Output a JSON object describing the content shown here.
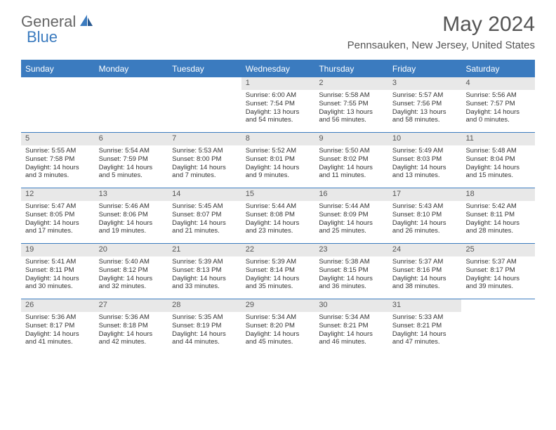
{
  "brand": {
    "part1": "General",
    "part2": "Blue",
    "logo_color": "#3b7bbf"
  },
  "title": "May 2024",
  "location": "Pennsauken, New Jersey, United States",
  "colors": {
    "header_bg": "#3b7bbf",
    "header_text": "#ffffff",
    "daynum_bg": "#e8e8e8",
    "border": "#3b7bbf",
    "text": "#333333"
  },
  "weekdays": [
    "Sunday",
    "Monday",
    "Tuesday",
    "Wednesday",
    "Thursday",
    "Friday",
    "Saturday"
  ],
  "weeks": [
    [
      {
        "n": "",
        "lines": []
      },
      {
        "n": "",
        "lines": []
      },
      {
        "n": "",
        "lines": []
      },
      {
        "n": "1",
        "lines": [
          "Sunrise: 6:00 AM",
          "Sunset: 7:54 PM",
          "Daylight: 13 hours and 54 minutes."
        ]
      },
      {
        "n": "2",
        "lines": [
          "Sunrise: 5:58 AM",
          "Sunset: 7:55 PM",
          "Daylight: 13 hours and 56 minutes."
        ]
      },
      {
        "n": "3",
        "lines": [
          "Sunrise: 5:57 AM",
          "Sunset: 7:56 PM",
          "Daylight: 13 hours and 58 minutes."
        ]
      },
      {
        "n": "4",
        "lines": [
          "Sunrise: 5:56 AM",
          "Sunset: 7:57 PM",
          "Daylight: 14 hours and 0 minutes."
        ]
      }
    ],
    [
      {
        "n": "5",
        "lines": [
          "Sunrise: 5:55 AM",
          "Sunset: 7:58 PM",
          "Daylight: 14 hours and 3 minutes."
        ]
      },
      {
        "n": "6",
        "lines": [
          "Sunrise: 5:54 AM",
          "Sunset: 7:59 PM",
          "Daylight: 14 hours and 5 minutes."
        ]
      },
      {
        "n": "7",
        "lines": [
          "Sunrise: 5:53 AM",
          "Sunset: 8:00 PM",
          "Daylight: 14 hours and 7 minutes."
        ]
      },
      {
        "n": "8",
        "lines": [
          "Sunrise: 5:52 AM",
          "Sunset: 8:01 PM",
          "Daylight: 14 hours and 9 minutes."
        ]
      },
      {
        "n": "9",
        "lines": [
          "Sunrise: 5:50 AM",
          "Sunset: 8:02 PM",
          "Daylight: 14 hours and 11 minutes."
        ]
      },
      {
        "n": "10",
        "lines": [
          "Sunrise: 5:49 AM",
          "Sunset: 8:03 PM",
          "Daylight: 14 hours and 13 minutes."
        ]
      },
      {
        "n": "11",
        "lines": [
          "Sunrise: 5:48 AM",
          "Sunset: 8:04 PM",
          "Daylight: 14 hours and 15 minutes."
        ]
      }
    ],
    [
      {
        "n": "12",
        "lines": [
          "Sunrise: 5:47 AM",
          "Sunset: 8:05 PM",
          "Daylight: 14 hours and 17 minutes."
        ]
      },
      {
        "n": "13",
        "lines": [
          "Sunrise: 5:46 AM",
          "Sunset: 8:06 PM",
          "Daylight: 14 hours and 19 minutes."
        ]
      },
      {
        "n": "14",
        "lines": [
          "Sunrise: 5:45 AM",
          "Sunset: 8:07 PM",
          "Daylight: 14 hours and 21 minutes."
        ]
      },
      {
        "n": "15",
        "lines": [
          "Sunrise: 5:44 AM",
          "Sunset: 8:08 PM",
          "Daylight: 14 hours and 23 minutes."
        ]
      },
      {
        "n": "16",
        "lines": [
          "Sunrise: 5:44 AM",
          "Sunset: 8:09 PM",
          "Daylight: 14 hours and 25 minutes."
        ]
      },
      {
        "n": "17",
        "lines": [
          "Sunrise: 5:43 AM",
          "Sunset: 8:10 PM",
          "Daylight: 14 hours and 26 minutes."
        ]
      },
      {
        "n": "18",
        "lines": [
          "Sunrise: 5:42 AM",
          "Sunset: 8:11 PM",
          "Daylight: 14 hours and 28 minutes."
        ]
      }
    ],
    [
      {
        "n": "19",
        "lines": [
          "Sunrise: 5:41 AM",
          "Sunset: 8:11 PM",
          "Daylight: 14 hours and 30 minutes."
        ]
      },
      {
        "n": "20",
        "lines": [
          "Sunrise: 5:40 AM",
          "Sunset: 8:12 PM",
          "Daylight: 14 hours and 32 minutes."
        ]
      },
      {
        "n": "21",
        "lines": [
          "Sunrise: 5:39 AM",
          "Sunset: 8:13 PM",
          "Daylight: 14 hours and 33 minutes."
        ]
      },
      {
        "n": "22",
        "lines": [
          "Sunrise: 5:39 AM",
          "Sunset: 8:14 PM",
          "Daylight: 14 hours and 35 minutes."
        ]
      },
      {
        "n": "23",
        "lines": [
          "Sunrise: 5:38 AM",
          "Sunset: 8:15 PM",
          "Daylight: 14 hours and 36 minutes."
        ]
      },
      {
        "n": "24",
        "lines": [
          "Sunrise: 5:37 AM",
          "Sunset: 8:16 PM",
          "Daylight: 14 hours and 38 minutes."
        ]
      },
      {
        "n": "25",
        "lines": [
          "Sunrise: 5:37 AM",
          "Sunset: 8:17 PM",
          "Daylight: 14 hours and 39 minutes."
        ]
      }
    ],
    [
      {
        "n": "26",
        "lines": [
          "Sunrise: 5:36 AM",
          "Sunset: 8:17 PM",
          "Daylight: 14 hours and 41 minutes."
        ]
      },
      {
        "n": "27",
        "lines": [
          "Sunrise: 5:36 AM",
          "Sunset: 8:18 PM",
          "Daylight: 14 hours and 42 minutes."
        ]
      },
      {
        "n": "28",
        "lines": [
          "Sunrise: 5:35 AM",
          "Sunset: 8:19 PM",
          "Daylight: 14 hours and 44 minutes."
        ]
      },
      {
        "n": "29",
        "lines": [
          "Sunrise: 5:34 AM",
          "Sunset: 8:20 PM",
          "Daylight: 14 hours and 45 minutes."
        ]
      },
      {
        "n": "30",
        "lines": [
          "Sunrise: 5:34 AM",
          "Sunset: 8:21 PM",
          "Daylight: 14 hours and 46 minutes."
        ]
      },
      {
        "n": "31",
        "lines": [
          "Sunrise: 5:33 AM",
          "Sunset: 8:21 PM",
          "Daylight: 14 hours and 47 minutes."
        ]
      },
      {
        "n": "",
        "lines": []
      }
    ]
  ]
}
